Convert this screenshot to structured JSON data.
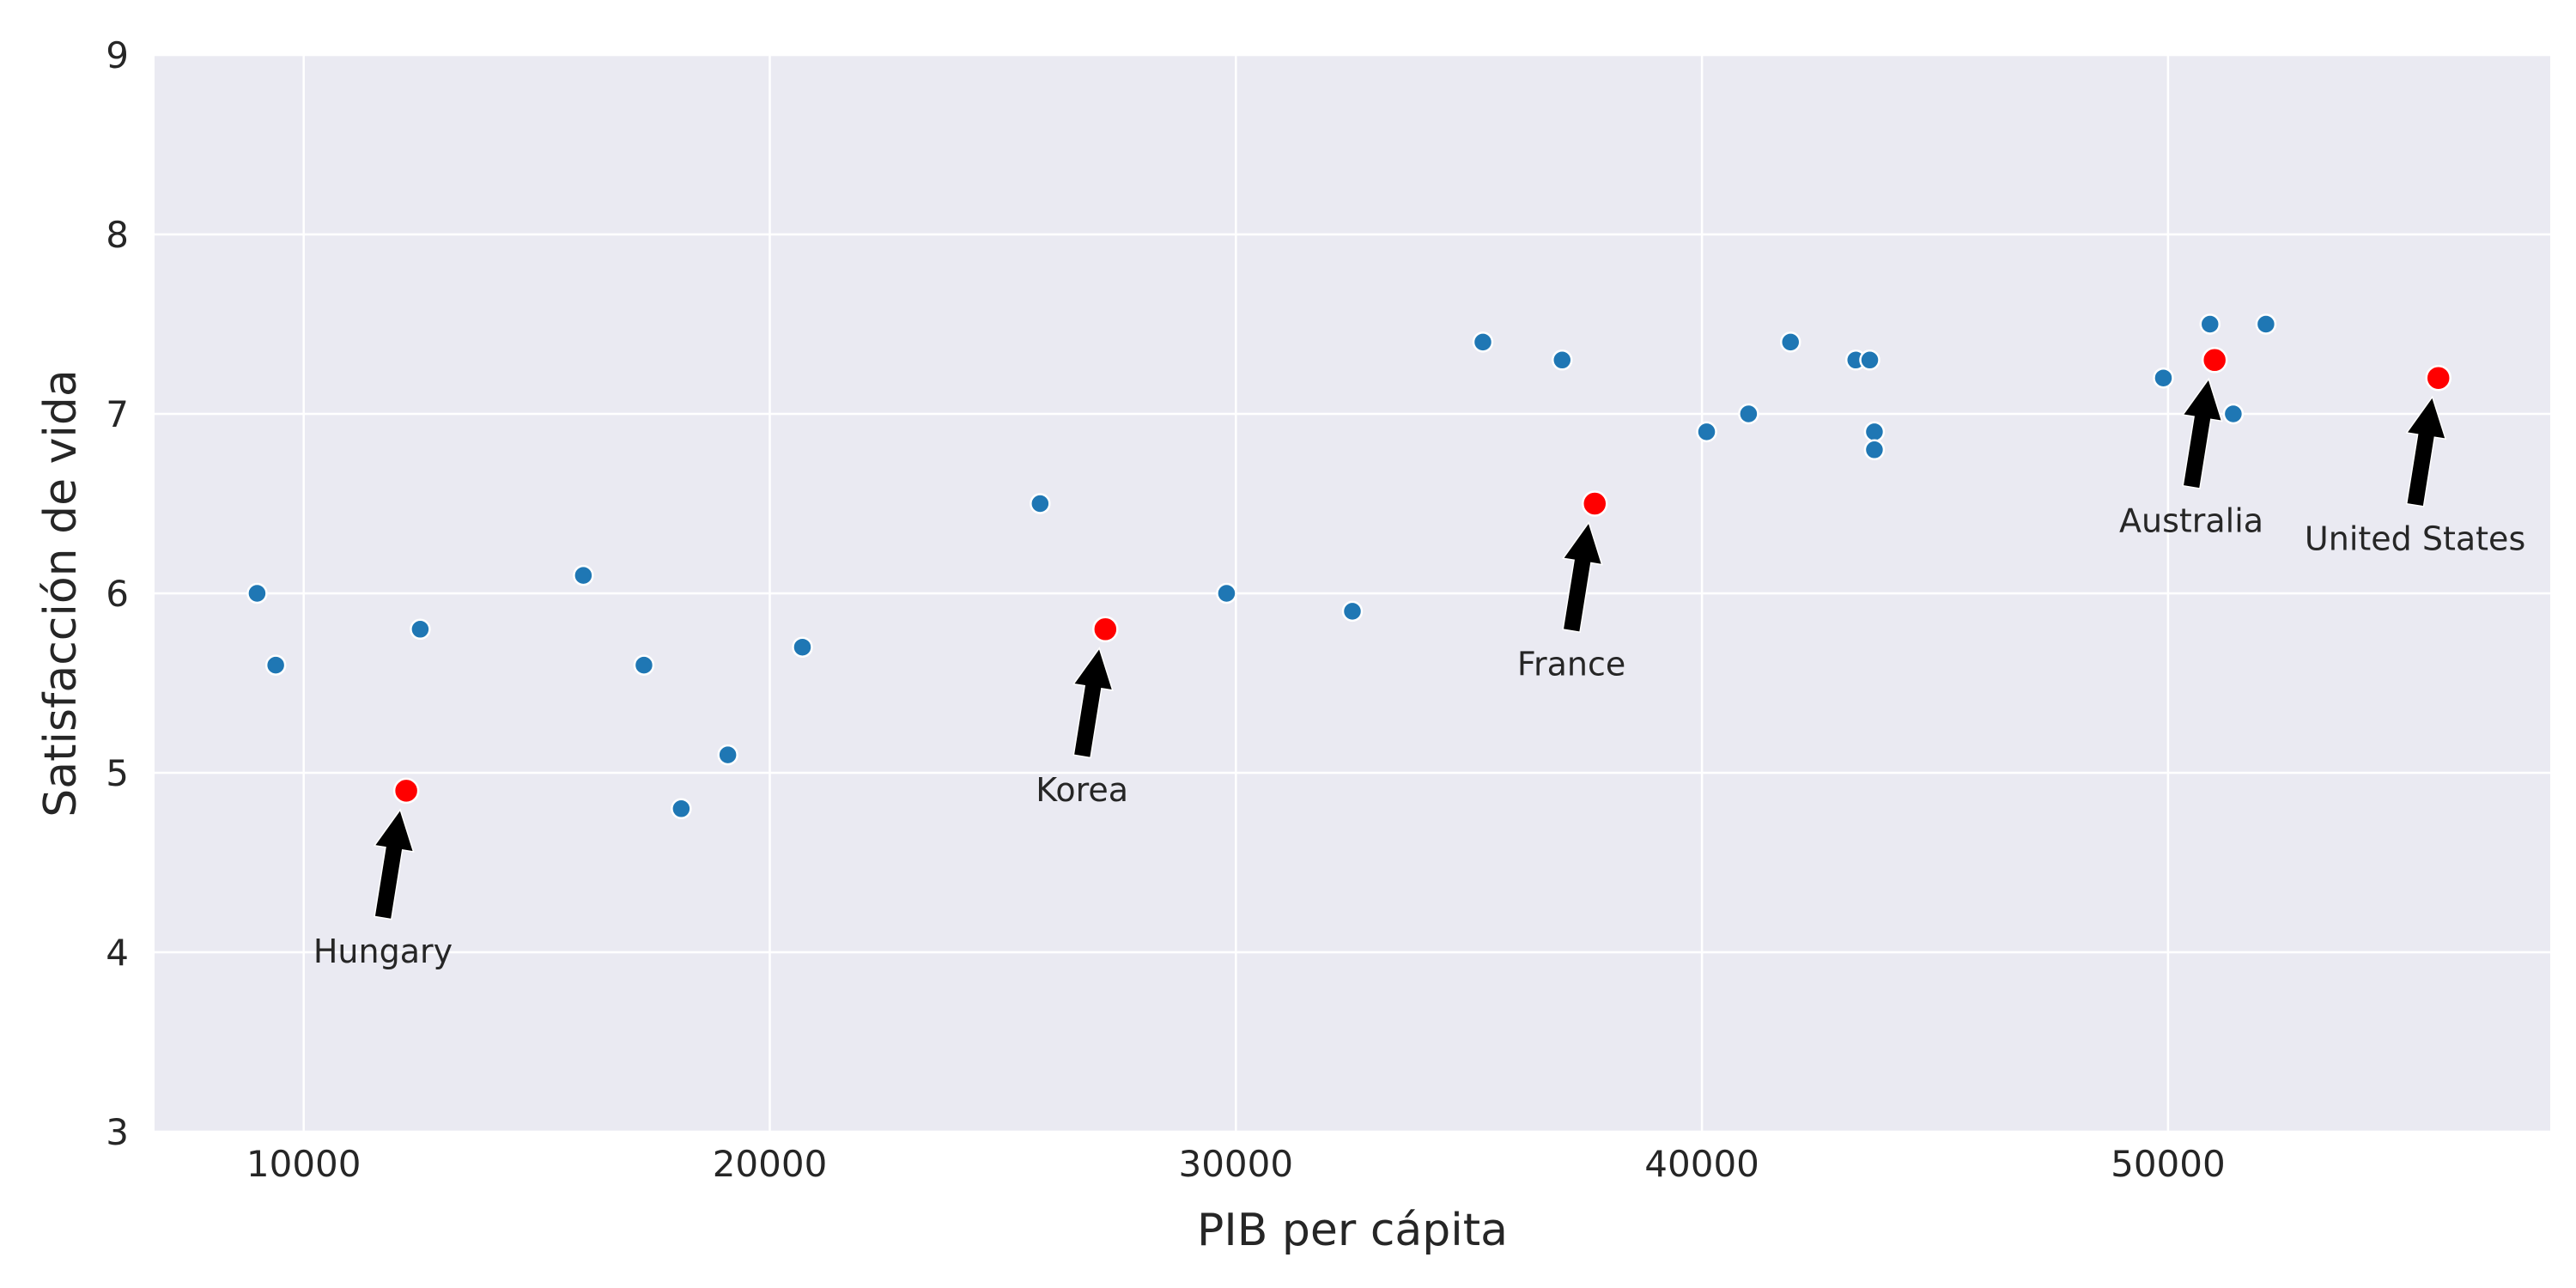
{
  "chart_data": {
    "type": "scatter",
    "title": "",
    "xlabel": "PIB per cápita",
    "ylabel": "Satisfacción de vida",
    "xlim": [
      6800,
      58200
    ],
    "ylim": [
      3,
      9
    ],
    "xticks": [
      10000,
      20000,
      30000,
      40000,
      50000
    ],
    "yticks": [
      3,
      4,
      5,
      6,
      7,
      8,
      9
    ],
    "grid": true,
    "colors": {
      "background": "#eaeaf2",
      "grid": "#ffffff",
      "point": "#1f77b4",
      "highlight": "#ff0000",
      "arrow": "#000000"
    },
    "points": [
      {
        "x": 9000,
        "y": 6.0
      },
      {
        "x": 9400,
        "y": 5.6
      },
      {
        "x": 12500,
        "y": 5.8
      },
      {
        "x": 16000,
        "y": 6.1
      },
      {
        "x": 17300,
        "y": 5.6
      },
      {
        "x": 18100,
        "y": 4.8
      },
      {
        "x": 19100,
        "y": 5.1
      },
      {
        "x": 20700,
        "y": 5.7
      },
      {
        "x": 25800,
        "y": 6.5
      },
      {
        "x": 29800,
        "y": 6.0
      },
      {
        "x": 32500,
        "y": 5.9
      },
      {
        "x": 35300,
        "y": 7.4
      },
      {
        "x": 37000,
        "y": 7.3
      },
      {
        "x": 40100,
        "y": 6.9
      },
      {
        "x": 41000,
        "y": 7.0
      },
      {
        "x": 41900,
        "y": 7.4
      },
      {
        "x": 43300,
        "y": 7.3
      },
      {
        "x": 43600,
        "y": 7.3
      },
      {
        "x": 43700,
        "y": 6.9
      },
      {
        "x": 43700,
        "y": 6.8
      },
      {
        "x": 49900,
        "y": 7.2
      },
      {
        "x": 50900,
        "y": 7.5
      },
      {
        "x": 51400,
        "y": 7.0
      },
      {
        "x": 52100,
        "y": 7.5
      }
    ],
    "highlighted": [
      {
        "name": "Hungary",
        "x": 12200,
        "y": 4.9,
        "label_x": 11700,
        "label_y": 4.0
      },
      {
        "name": "Korea",
        "x": 27200,
        "y": 5.8,
        "label_x": 26700,
        "label_y": 4.9
      },
      {
        "name": "France",
        "x": 37700,
        "y": 6.5,
        "label_x": 37200,
        "label_y": 5.6
      },
      {
        "name": "Australia",
        "x": 51000,
        "y": 7.3,
        "label_x": 50500,
        "label_y": 6.4
      },
      {
        "name": "United States",
        "x": 55800,
        "y": 7.2,
        "label_x": 55300,
        "label_y": 6.3
      }
    ]
  }
}
